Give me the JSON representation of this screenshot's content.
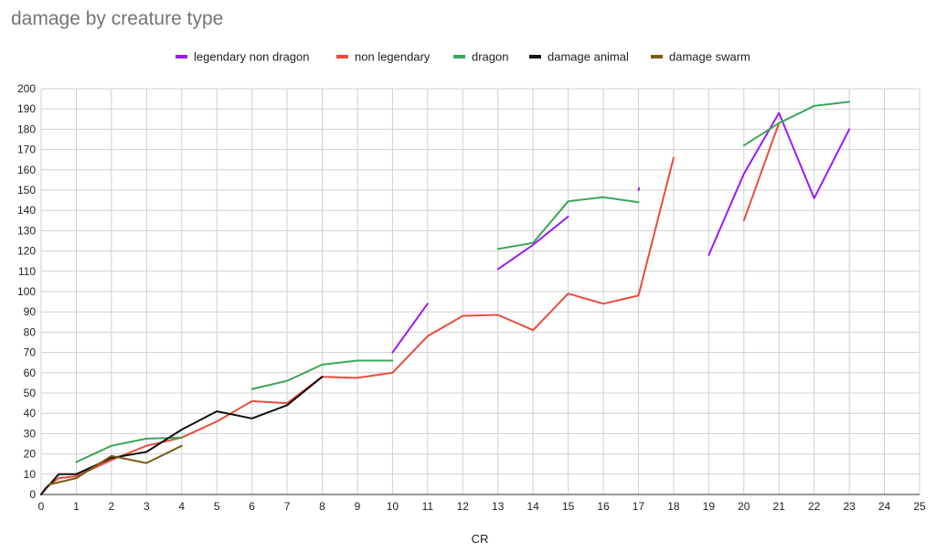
{
  "chart_data": {
    "type": "line",
    "title": "damage by creature type",
    "xlabel": "CR",
    "ylabel": "",
    "xlim": [
      0,
      25
    ],
    "ylim": [
      0,
      200
    ],
    "xticks": [
      0,
      1,
      2,
      3,
      4,
      5,
      6,
      7,
      8,
      9,
      10,
      11,
      12,
      13,
      14,
      15,
      16,
      17,
      18,
      19,
      20,
      21,
      22,
      23,
      24,
      25
    ],
    "yticks": [
      0,
      10,
      20,
      30,
      40,
      50,
      60,
      70,
      80,
      90,
      100,
      110,
      120,
      130,
      140,
      150,
      160,
      170,
      180,
      190,
      200
    ],
    "grid": true,
    "legend_position": "top",
    "series": [
      {
        "name": "legendary non dragon",
        "color": "#9b1bf5",
        "points": [
          [
            10,
            70
          ],
          [
            11,
            94
          ],
          null,
          [
            13,
            111
          ],
          [
            14,
            123
          ],
          [
            15,
            137
          ],
          null,
          [
            17,
            150
          ],
          [
            17.02,
            151
          ],
          null,
          [
            19,
            118
          ],
          [
            20,
            158
          ],
          [
            21,
            188
          ],
          [
            22,
            146
          ],
          [
            23,
            180
          ]
        ]
      },
      {
        "name": "non legendary",
        "color": "#ea4c3c",
        "points": [
          [
            0,
            0
          ],
          [
            0.25,
            5
          ],
          [
            0.5,
            8
          ],
          [
            1,
            9
          ],
          [
            2,
            17
          ],
          [
            3,
            24
          ],
          [
            4,
            28
          ],
          [
            5,
            36
          ],
          [
            6,
            46
          ],
          [
            7,
            45
          ],
          [
            8,
            58
          ],
          [
            9,
            57.5
          ],
          [
            10,
            60
          ],
          [
            11,
            78
          ],
          [
            12,
            88
          ],
          [
            13,
            88.5
          ],
          [
            14,
            81
          ],
          [
            15,
            99
          ],
          [
            16,
            94
          ],
          [
            17,
            98
          ],
          [
            18,
            166
          ],
          null,
          [
            20,
            135
          ],
          [
            21,
            183
          ]
        ]
      },
      {
        "name": "dragon",
        "color": "#3aa757",
        "points": [
          [
            1,
            16
          ],
          [
            2,
            24
          ],
          [
            3,
            27.5
          ],
          [
            4,
            28
          ],
          null,
          [
            6,
            52
          ],
          [
            7,
            56
          ],
          [
            8,
            64
          ],
          [
            9,
            66
          ],
          [
            10,
            66
          ],
          null,
          [
            13,
            121
          ],
          [
            14,
            124
          ],
          [
            15,
            144.5
          ],
          [
            16,
            146.5
          ],
          [
            17,
            144
          ],
          null,
          [
            20,
            172
          ],
          [
            21,
            183
          ],
          [
            22,
            191.5
          ],
          [
            23,
            193.5
          ]
        ]
      },
      {
        "name": "damage animal",
        "color": "#111111",
        "points": [
          [
            0,
            0
          ],
          [
            0.125,
            3
          ],
          [
            0.25,
            5
          ],
          [
            0.5,
            10
          ],
          [
            1,
            10
          ],
          [
            2,
            18
          ],
          [
            3,
            21
          ],
          [
            4,
            32
          ],
          [
            5,
            41
          ],
          [
            6,
            37.5
          ],
          [
            7,
            44
          ],
          [
            8,
            58
          ]
        ]
      },
      {
        "name": "damage swarm",
        "color": "#7a5c10",
        "points": [
          [
            0.25,
            5
          ],
          [
            1,
            8
          ],
          [
            2,
            19
          ],
          [
            3,
            15.5
          ],
          [
            4,
            24
          ]
        ]
      }
    ]
  }
}
